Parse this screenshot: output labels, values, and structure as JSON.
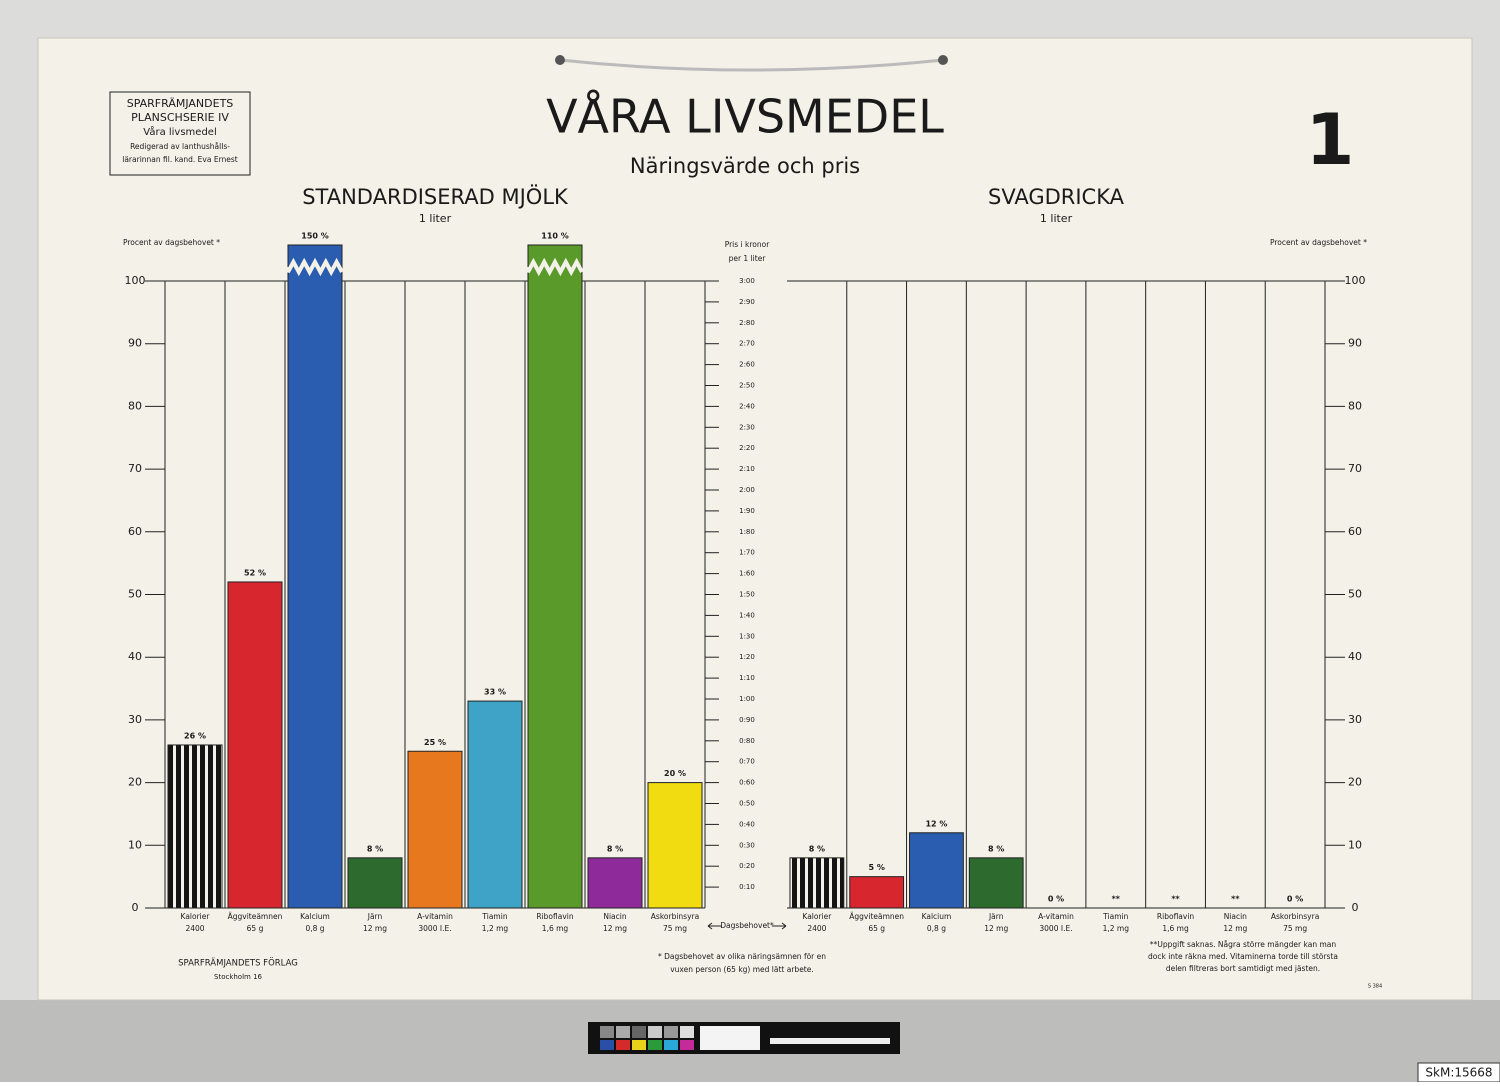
{
  "header": {
    "title": "VÅRA LIVSMEDEL",
    "subtitle": "Näringsvärde och pris",
    "number": "1",
    "box": [
      "SPARFRÄMJANDETS",
      "PLANSCHSERIE IV",
      "Våra livsmedel",
      "Redigerad av lanthushålls-",
      "lärarinnan fil. kand. Eva Ernest"
    ]
  },
  "chart_data": [
    {
      "type": "bar",
      "title": "STANDARDISERAD MJÖLK",
      "subtitle": "1 liter",
      "ylabel": "Procent av dagsbehovet *",
      "axis_side": "left",
      "categories": [
        "Kalorier",
        "Äggviteämnen",
        "Kalcium",
        "Järn",
        "A-vitamin",
        "Tiamin",
        "Riboflavin",
        "Niacin",
        "Askorbinsyra"
      ],
      "category_units": [
        "2400",
        "65 g",
        "0,8 g",
        "12 mg",
        "3000 I.E.",
        "1,2 mg",
        "1,6 mg",
        "12 mg",
        "75 mg"
      ],
      "values": [
        26,
        52,
        150,
        8,
        25,
        33,
        110,
        8,
        20
      ],
      "value_labels": [
        "26 %",
        "52 %",
        "150 %",
        "8 %",
        "25 %",
        "33 %",
        "110 %",
        "8 %",
        "20 %"
      ],
      "colors": [
        "#141414",
        "#d8262e",
        "#2a5db0",
        "#2c6a2e",
        "#e8781e",
        "#3ea3c7",
        "#5a9a2a",
        "#8e2a9a",
        "#f0dc10"
      ],
      "hatch": [
        "vertical",
        null,
        null,
        null,
        null,
        null,
        null,
        null,
        null
      ],
      "ylim": [
        0,
        100
      ],
      "yticks": [
        0,
        10,
        20,
        30,
        40,
        50,
        60,
        70,
        80,
        90,
        100
      ],
      "y2label": [
        "Pris i kronor",
        "per 1 liter"
      ],
      "y2lim": [
        0,
        3
      ],
      "y2ticks": [
        {
          "value": 0.1,
          "label": "0:10"
        },
        {
          "value": 0.2,
          "label": "0:20"
        },
        {
          "value": 0.3,
          "label": "0:30"
        },
        {
          "value": 0.4,
          "label": "0:40"
        },
        {
          "value": 0.5,
          "label": "0:50"
        },
        {
          "value": 0.6,
          "label": "0:60"
        },
        {
          "value": 0.7,
          "label": "0:70"
        },
        {
          "value": 0.8,
          "label": "0:80"
        },
        {
          "value": 0.9,
          "label": "0:90"
        },
        {
          "value": 1.0,
          "label": "1:00"
        },
        {
          "value": 1.1,
          "label": "1:10"
        },
        {
          "value": 1.2,
          "label": "1:20"
        },
        {
          "value": 1.3,
          "label": "1:30"
        },
        {
          "value": 1.4,
          "label": "1:40"
        },
        {
          "value": 1.5,
          "label": "1:50"
        },
        {
          "value": 1.6,
          "label": "1:60"
        },
        {
          "value": 1.7,
          "label": "1:70"
        },
        {
          "value": 1.8,
          "label": "1:80"
        },
        {
          "value": 1.9,
          "label": "1:90"
        },
        {
          "value": 2.0,
          "label": "2:00"
        },
        {
          "value": 2.1,
          "label": "2:10"
        },
        {
          "value": 2.2,
          "label": "2:20"
        },
        {
          "value": 2.3,
          "label": "2:30"
        },
        {
          "value": 2.4,
          "label": "2:40"
        },
        {
          "value": 2.5,
          "label": "2:50"
        },
        {
          "value": 2.6,
          "label": "2:60"
        },
        {
          "value": 2.7,
          "label": "2:70"
        },
        {
          "value": 2.8,
          "label": "2:80"
        },
        {
          "value": 2.9,
          "label": "2:90"
        },
        {
          "value": 3.0,
          "label": "3:00"
        }
      ],
      "y2caption": "Dagsbehovet*"
    },
    {
      "type": "bar",
      "title": "SVAGDRICKA",
      "subtitle": "1 liter",
      "ylabel": "Procent av dagsbehovet *",
      "axis_side": "right",
      "categories": [
        "Kalorier",
        "Äggviteämnen",
        "Kalcium",
        "Järn",
        "A-vitamin",
        "Tiamin",
        "Riboflavin",
        "Niacin",
        "Askorbinsyra"
      ],
      "category_units": [
        "2400",
        "65 g",
        "0,8 g",
        "12 mg",
        "3000 I.E.",
        "1,2 mg",
        "1,6 mg",
        "12 mg",
        "75 mg"
      ],
      "values": [
        8,
        5,
        12,
        8,
        0,
        null,
        null,
        null,
        0
      ],
      "value_labels": [
        "8 %",
        "5 %",
        "12 %",
        "8 %",
        "0 %",
        "**",
        "**",
        "**",
        "0 %"
      ],
      "colors": [
        "#141414",
        "#d8262e",
        "#2a5db0",
        "#2c6a2e",
        "#e8781e",
        "#3ea3c7",
        "#5a9a2a",
        "#8e2a9a",
        "#f0dc10"
      ],
      "hatch": [
        "vertical",
        null,
        null,
        null,
        null,
        null,
        null,
        null,
        null
      ],
      "ylim": [
        0,
        100
      ],
      "yticks": [
        0,
        10,
        20,
        30,
        40,
        50,
        60,
        70,
        80,
        90,
        100
      ]
    }
  ],
  "footer": {
    "publisher": "SPARFRÄMJANDETS FÖRLAG",
    "city": "Stockholm 16",
    "note": [
      "* Dagsbehovet av olika näringsämnen för en",
      "vuxen person (65 kg) med lätt arbete."
    ],
    "note2": [
      "**Uppgift saknas. Några större mängder kan man",
      "dock inte räkna med. Vitaminerna torde till största",
      "delen filtreras bort samtidigt med jästen."
    ],
    "code": "S 384"
  },
  "watermark": "SkM:15668"
}
